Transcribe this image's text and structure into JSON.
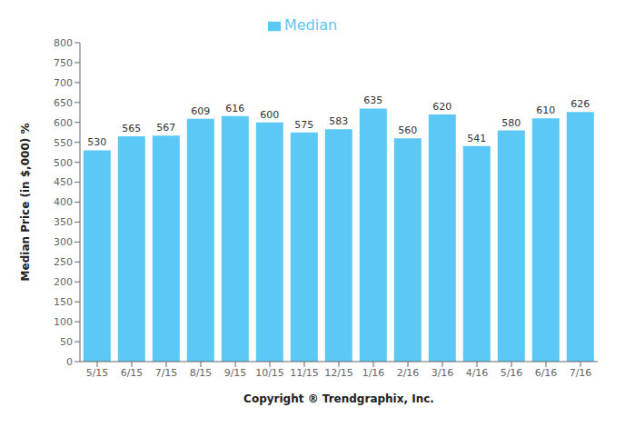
{
  "chart_data": {
    "type": "bar",
    "categories": [
      "5/15",
      "6/15",
      "7/15",
      "8/15",
      "9/15",
      "10/15",
      "11/15",
      "12/15",
      "1/16",
      "2/16",
      "3/16",
      "4/16",
      "5/16",
      "6/16",
      "7/16"
    ],
    "series": [
      {
        "name": "Median",
        "color": "#5BC8F5",
        "values": [
          530,
          565,
          567,
          609,
          616,
          600,
          575,
          583,
          635,
          560,
          620,
          541,
          580,
          610,
          626
        ]
      }
    ],
    "ylabel": "Median Price (in $,000) %",
    "xlabel": "Copyright ® Trendgraphix, Inc.",
    "ylim": [
      0,
      800
    ],
    "yticks": [
      0,
      50,
      100,
      150,
      200,
      250,
      300,
      350,
      400,
      450,
      500,
      550,
      600,
      650,
      700,
      750,
      800
    ],
    "grid": false,
    "legend": "top",
    "data_labels": true
  }
}
